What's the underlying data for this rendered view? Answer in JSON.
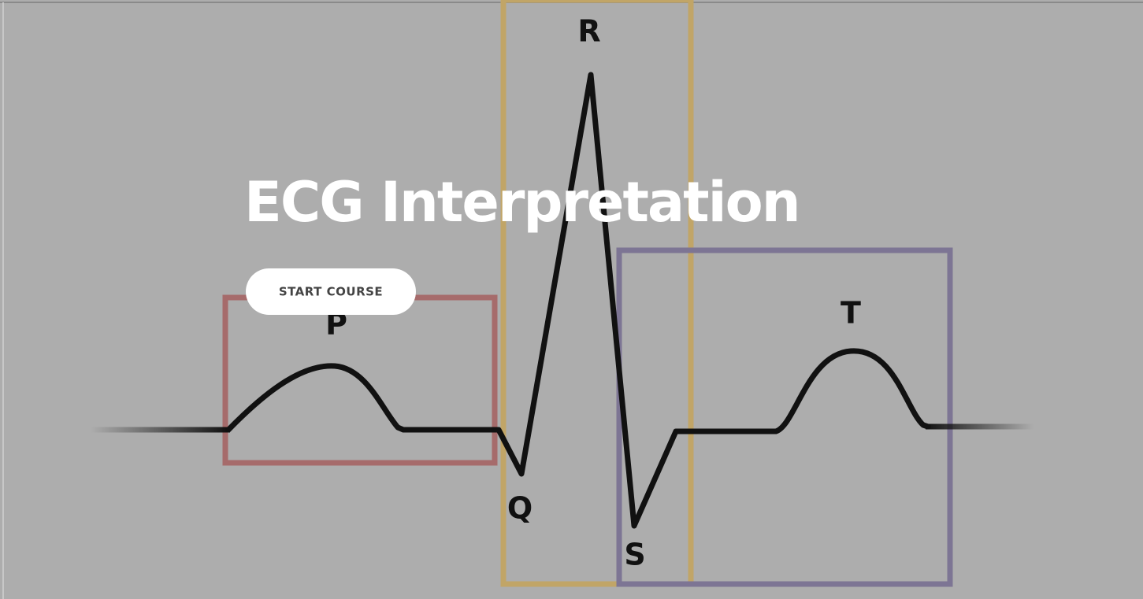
{
  "hero": {
    "title": "ECG Interpretation",
    "button": "START COURSE"
  },
  "waveform": {
    "labels": {
      "p": "P",
      "q": "Q",
      "r": "R",
      "s": "S",
      "t": "T"
    }
  }
}
